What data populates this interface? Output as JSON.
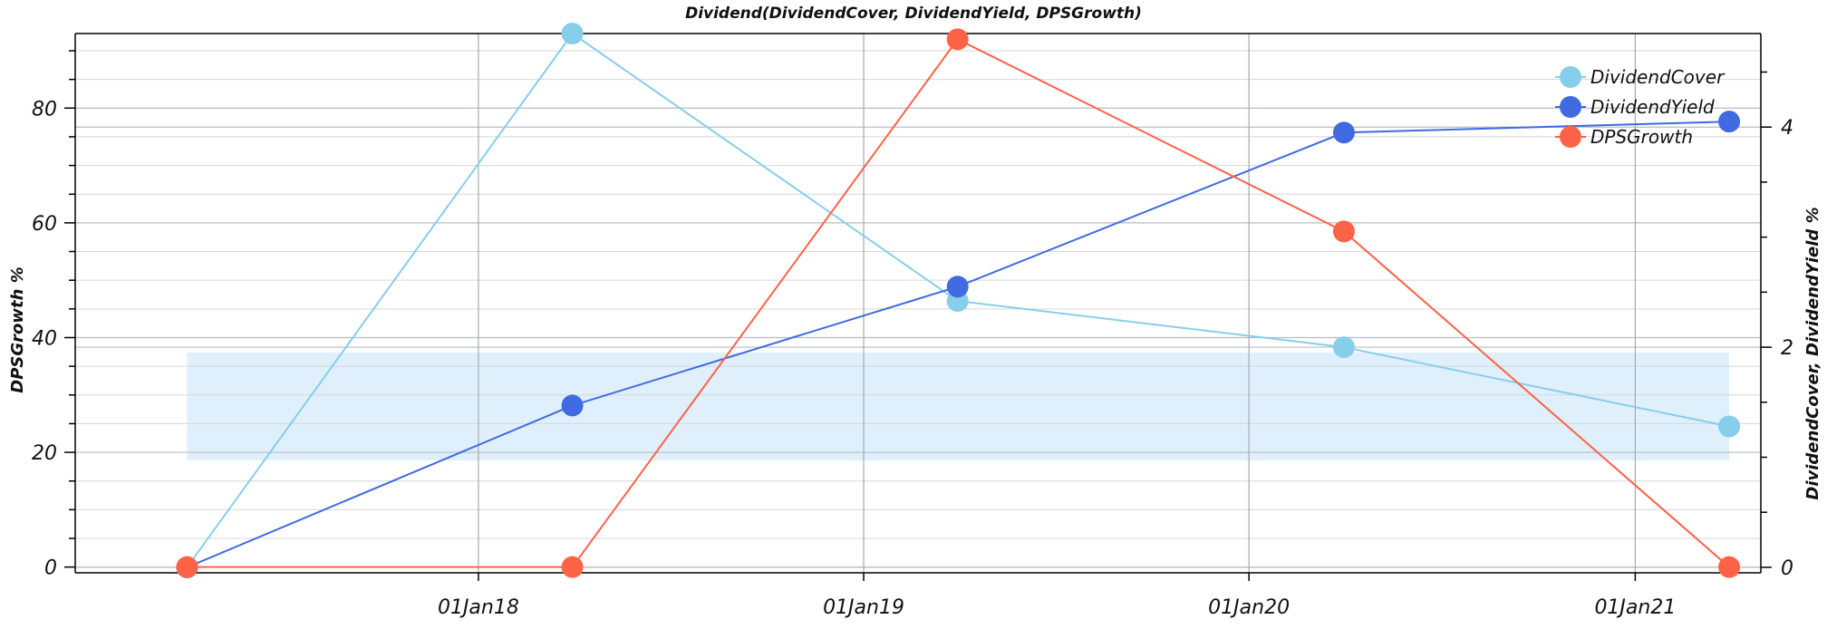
{
  "chart_data": {
    "type": "line",
    "title": "Dividend(DividendCover, DividendYield, DPSGrowth)",
    "x": [
      "2017-03-31",
      "2018-03-31",
      "2019-03-31",
      "2020-03-31",
      "2021-03-31"
    ],
    "xticks": [
      {
        "date": "2018-01-01",
        "label": "01Jan18"
      },
      {
        "date": "2019-01-01",
        "label": "01Jan19"
      },
      {
        "date": "2020-01-01",
        "label": "01Jan20"
      },
      {
        "date": "2021-01-01",
        "label": "01Jan21"
      }
    ],
    "xlim": [
      "2016-12-15",
      "2021-04-30"
    ],
    "y_left": {
      "label": "DPSGrowth %",
      "ylim": [
        -1,
        93
      ],
      "ticks": [
        0,
        20,
        40,
        60,
        80
      ],
      "minor_step": 5
    },
    "y_right": {
      "label": "DividendCover, DividendYield %",
      "ylim": [
        -0.05,
        4.85
      ],
      "ticks": [
        0,
        2,
        4
      ],
      "minor_step": 0.5
    },
    "series": [
      {
        "name": "DividendCover",
        "axis": "right",
        "color": "#87CEEB",
        "values": [
          0.0,
          4.85,
          2.42,
          2.0,
          1.28
        ]
      },
      {
        "name": "DividendYield",
        "axis": "right",
        "color": "#4169E1",
        "values": [
          0.0,
          1.47,
          2.55,
          3.95,
          4.05
        ]
      },
      {
        "name": "DPSGrowth",
        "axis": "left",
        "color": "#FF6347",
        "values": [
          0.0,
          0.0,
          92.0,
          58.5,
          0.0
        ]
      }
    ],
    "band": {
      "axis": "left",
      "from": 18.6,
      "to": 37.4,
      "color": "#dff0fc"
    },
    "legend": "top-right",
    "grid": true
  }
}
